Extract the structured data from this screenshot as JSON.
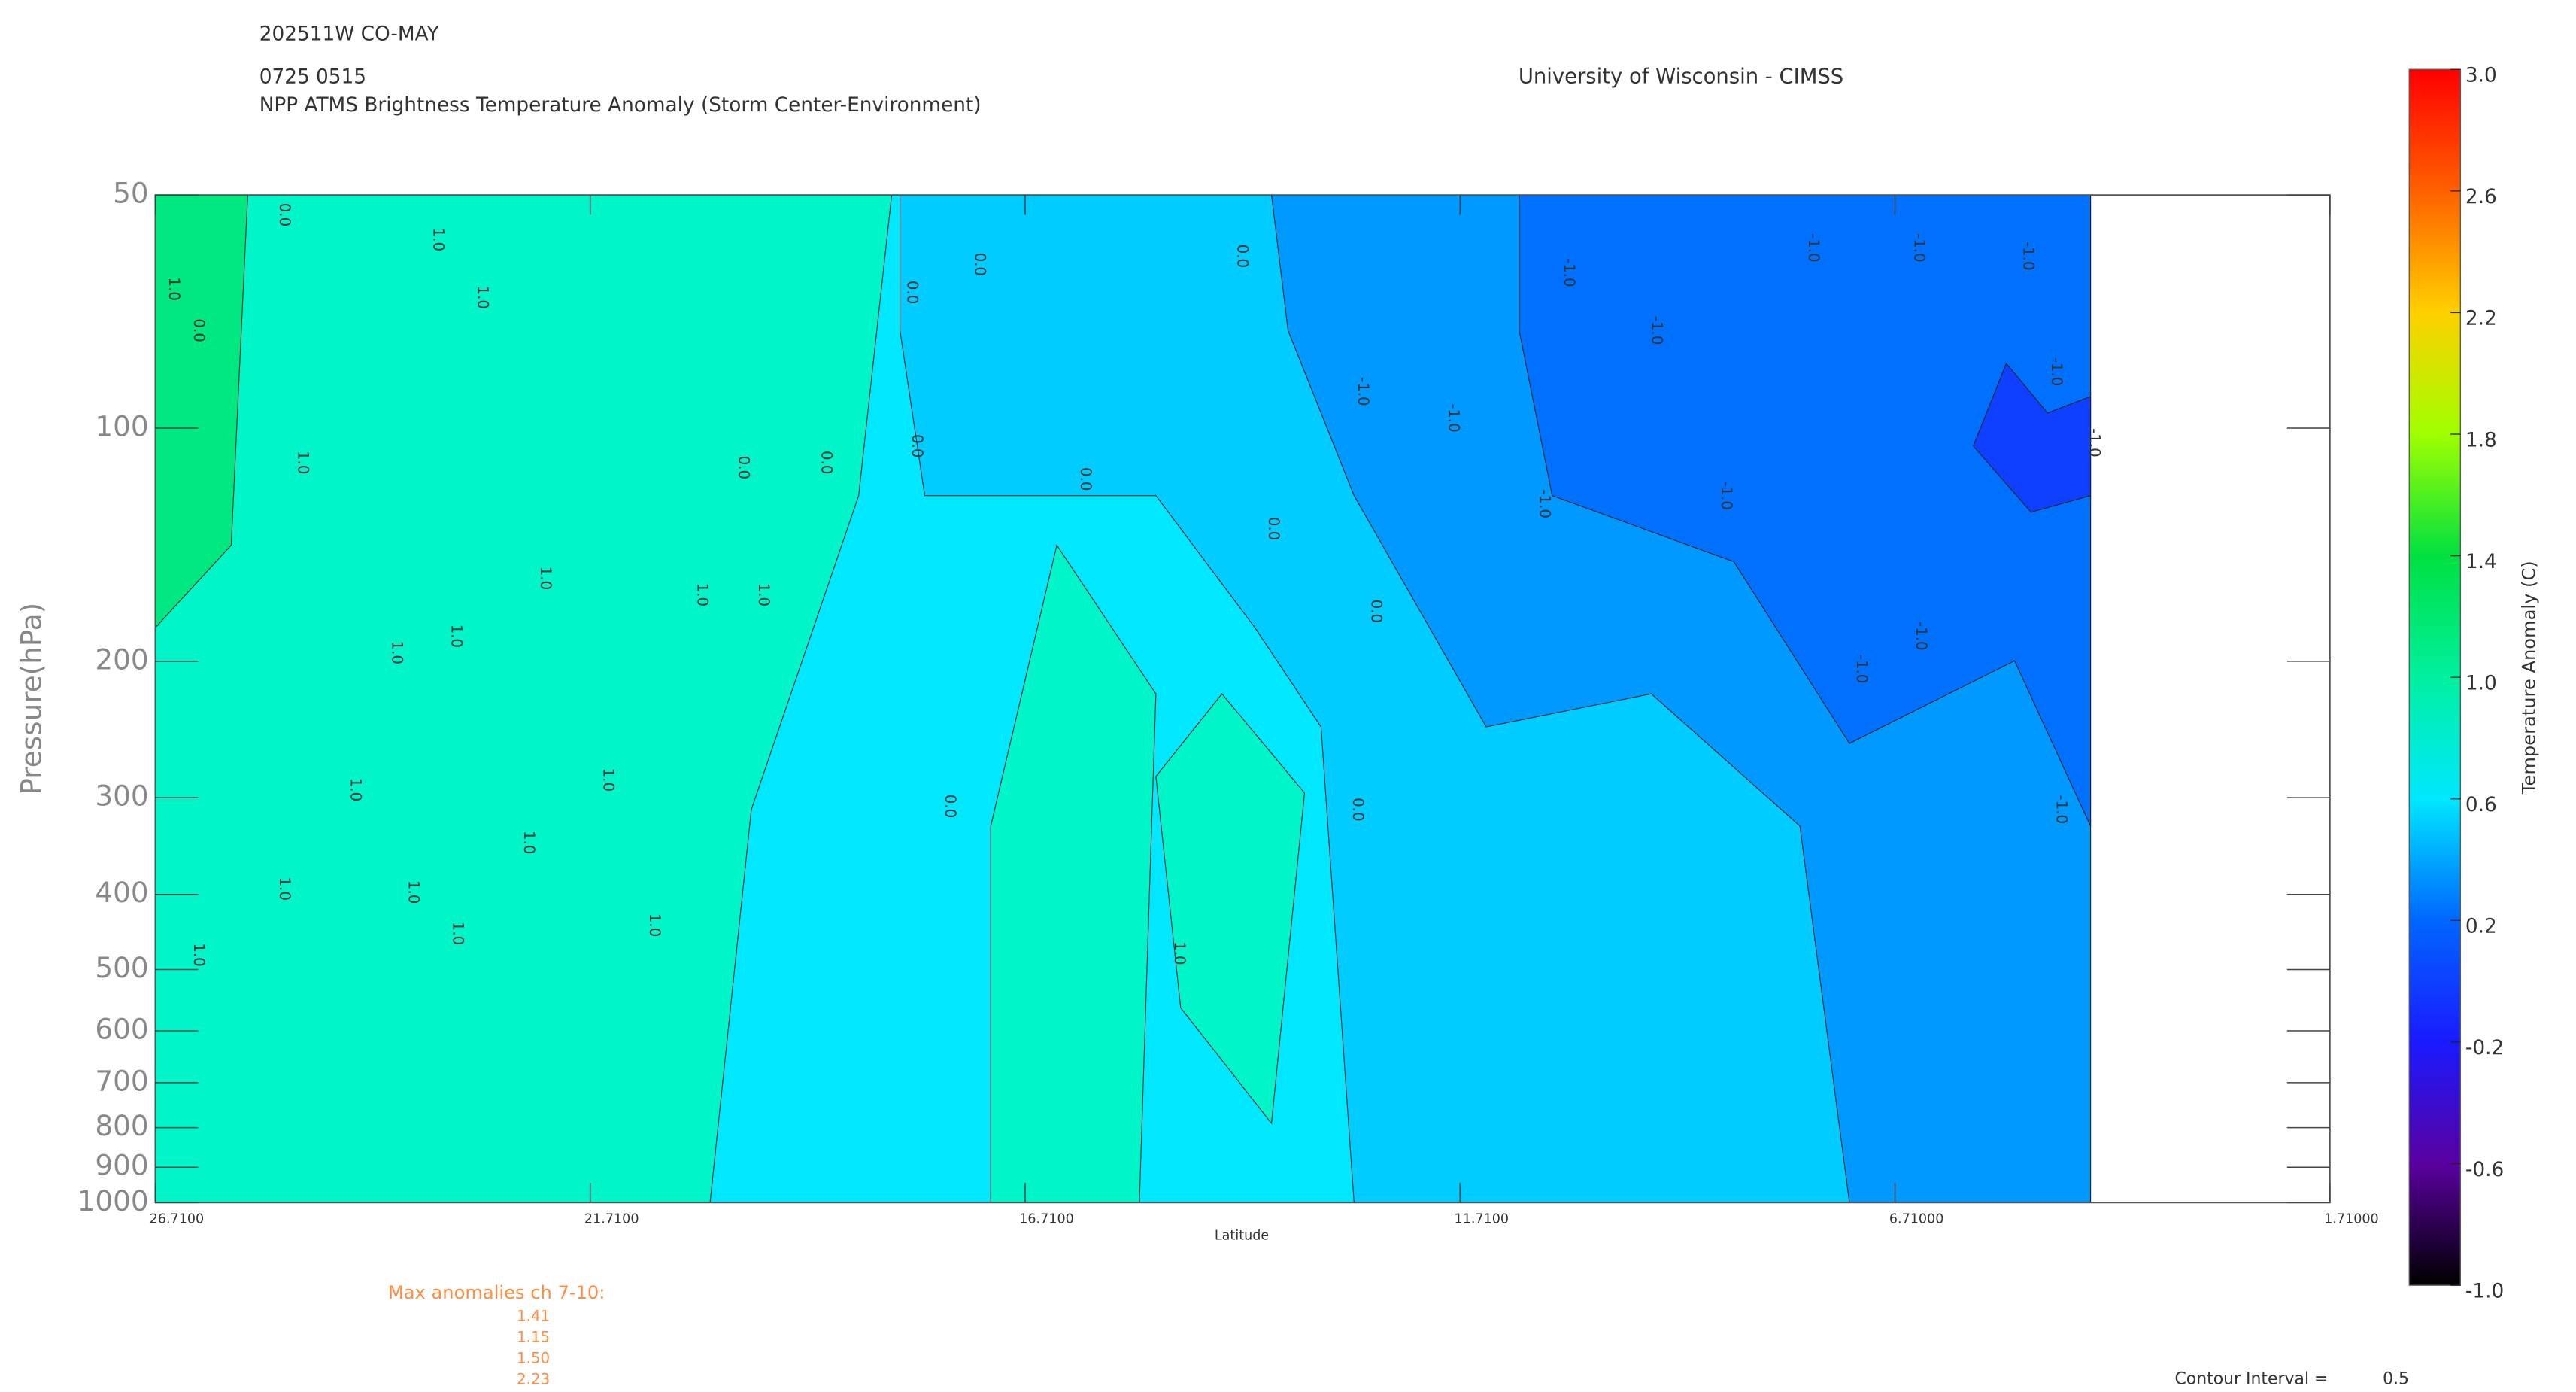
{
  "chart_data": {
    "type": "contour",
    "header_lines": [
      "202511W CO-MAY",
      "0725 0515"
    ],
    "title": "NPP ATMS Brightness Temperature Anomaly (Storm Center-Environment)",
    "credit": "University of Wisconsin - CIMSS",
    "x_label": "Latitude",
    "y_label": "Pressure(hPa)",
    "xlim": [
      26.71,
      1.71
    ],
    "xticks": [
      {
        "value": 26.71,
        "label": "26.7100"
      },
      {
        "value": 21.71,
        "label": "21.7100"
      },
      {
        "value": 16.71,
        "label": "16.7100"
      },
      {
        "value": 11.71,
        "label": "11.7100"
      },
      {
        "value": 6.71,
        "label": "6.71000"
      },
      {
        "value": 1.71,
        "label": "1.71000"
      }
    ],
    "ylim": [
      50,
      1000
    ],
    "y_log": true,
    "yticks": [
      50,
      100,
      200,
      300,
      400,
      500,
      600,
      700,
      800,
      900,
      1000
    ],
    "colorbar": {
      "label": "Temperature Anomaly (C)",
      "lim": [
        -1,
        3
      ],
      "ticks": [
        {
          "value": -1,
          "label": "-1.0"
        },
        -0.6,
        -0.2,
        0.2,
        0.6,
        {
          "value": 1,
          "label": "1.0"
        },
        1.4,
        1.8,
        2.2,
        2.6,
        {
          "value": 3,
          "label": "3.0"
        }
      ],
      "colors": [
        "#000000",
        "#5a00a0",
        "#1a1aff",
        "#0066ff",
        "#00e8ff",
        "#00f0a0",
        "#00e040",
        "#a0ff00",
        "#ffd000",
        "#ff6000",
        "#ff0000"
      ]
    },
    "contour_labels": [
      "1.0",
      "0.0",
      "-1.0"
    ],
    "max_anomalies_title": "Max anomalies ch 7-10:",
    "max_anomalies": [
      "1.41",
      "1.15",
      "1.50",
      "2.23"
    ],
    "contour_interval_label": "Contour Interval =",
    "contour_interval": 0.5
  }
}
